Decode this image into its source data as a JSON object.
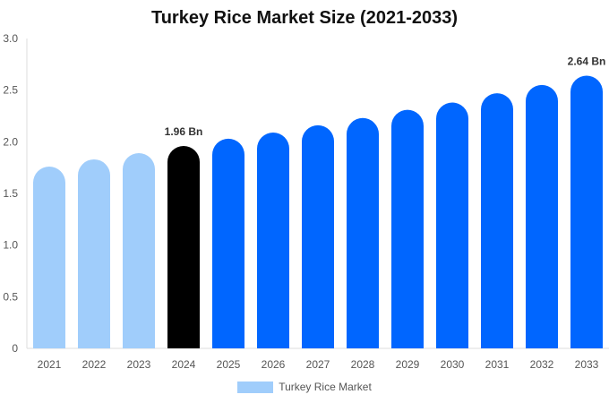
{
  "chart_data": {
    "type": "bar",
    "title": "Turkey Rice Market Size (2021-2033)",
    "categories": [
      "2021",
      "2022",
      "2023",
      "2024",
      "2025",
      "2026",
      "2027",
      "2028",
      "2029",
      "2030",
      "2031",
      "2032",
      "2033"
    ],
    "series": [
      {
        "name": "Turkey Rice Market",
        "values": [
          1.76,
          1.83,
          1.89,
          1.96,
          2.03,
          2.09,
          2.16,
          2.23,
          2.31,
          2.38,
          2.47,
          2.55,
          2.64
        ]
      }
    ],
    "bar_colors": [
      "#a0cdfb",
      "#a0cdfb",
      "#a0cdfb",
      "#000000",
      "#0066ff",
      "#0066ff",
      "#0066ff",
      "#0066ff",
      "#0066ff",
      "#0066ff",
      "#0066ff",
      "#0066ff",
      "#0066ff"
    ],
    "legend_color": "#a0cdfb",
    "data_labels": [
      {
        "category": "2024",
        "text": "1.96 Bn"
      },
      {
        "category": "2033",
        "text": "2.64 Bn"
      }
    ],
    "y_ticks": [
      "0",
      "0.5",
      "1.0",
      "1.5",
      "2.0",
      "2.5",
      "3.0"
    ],
    "ylim": [
      0,
      3.0
    ],
    "xlabel": "",
    "ylabel": "",
    "grid": false,
    "legend_position": "bottom"
  }
}
